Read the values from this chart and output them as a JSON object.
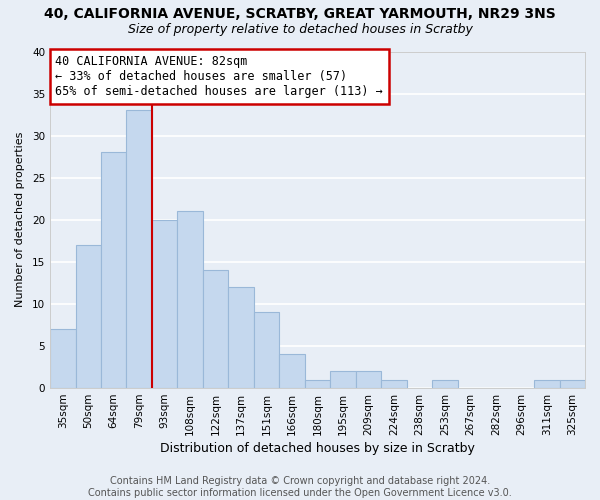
{
  "title": "40, CALIFORNIA AVENUE, SCRATBY, GREAT YARMOUTH, NR29 3NS",
  "subtitle": "Size of property relative to detached houses in Scratby",
  "xlabel": "Distribution of detached houses by size in Scratby",
  "ylabel": "Number of detached properties",
  "categories": [
    "35sqm",
    "50sqm",
    "64sqm",
    "79sqm",
    "93sqm",
    "108sqm",
    "122sqm",
    "137sqm",
    "151sqm",
    "166sqm",
    "180sqm",
    "195sqm",
    "209sqm",
    "224sqm",
    "238sqm",
    "253sqm",
    "267sqm",
    "282sqm",
    "296sqm",
    "311sqm",
    "325sqm"
  ],
  "values": [
    7,
    17,
    28,
    33,
    20,
    21,
    14,
    12,
    9,
    4,
    1,
    2,
    2,
    1,
    0,
    1,
    0,
    0,
    0,
    1,
    1
  ],
  "bar_color": "#c5d8ee",
  "bar_edge_color": "#9ab8d8",
  "vline_x": 3.5,
  "vline_color": "#cc0000",
  "annotation_text": "40 CALIFORNIA AVENUE: 82sqm\n← 33% of detached houses are smaller (57)\n65% of semi-detached houses are larger (113) →",
  "annotation_box_color": "white",
  "annotation_box_edge": "#cc0000",
  "ylim": [
    0,
    40
  ],
  "yticks": [
    0,
    5,
    10,
    15,
    20,
    25,
    30,
    35,
    40
  ],
  "footer": "Contains HM Land Registry data © Crown copyright and database right 2024.\nContains public sector information licensed under the Open Government Licence v3.0.",
  "bg_color": "#e8eef6",
  "plot_bg_color": "#e8eef6",
  "grid_color": "white",
  "title_fontsize": 10,
  "subtitle_fontsize": 9,
  "xlabel_fontsize": 9,
  "ylabel_fontsize": 8,
  "tick_fontsize": 7.5,
  "footer_fontsize": 7,
  "annotation_fontsize": 8.5
}
